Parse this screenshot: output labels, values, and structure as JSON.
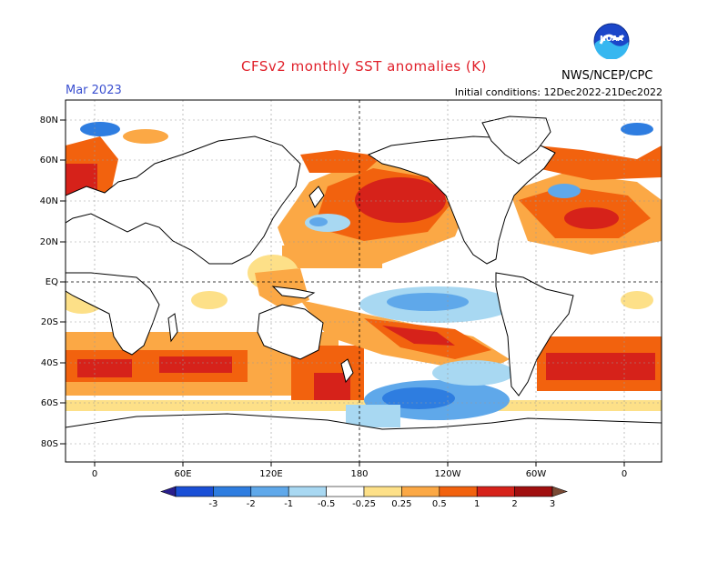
{
  "header": {
    "title": "CFSv2 monthly SST anomalies (K)",
    "month": "Mar 2023",
    "initial_conditions": "Initial conditions: 12Dec2022-21Dec2022",
    "agency": "NWS/NCEP/CPC",
    "logo_text": "NOAA"
  },
  "axes": {
    "lat_labels": [
      "80N",
      "60N",
      "40N",
      "20N",
      "EQ",
      "20S",
      "40S",
      "60S",
      "80S"
    ],
    "lon_labels": [
      "0",
      "60E",
      "120E",
      "180",
      "120W",
      "60W",
      "0"
    ]
  },
  "colorbar": {
    "tick_labels": [
      "-3",
      "-2",
      "-1",
      "-0.5",
      "-0.25",
      "0.25",
      "0.5",
      "1",
      "2",
      "3"
    ],
    "colors": [
      "#2a1e8c",
      "#1a4fd6",
      "#2e7de0",
      "#5fa8ea",
      "#a8d8f2",
      "#ffffff",
      "#fde088",
      "#fba845",
      "#f2620e",
      "#d6221a",
      "#a00f0f",
      "#7a4a35"
    ]
  },
  "colors": {
    "ocean_neutral": "#ffffff",
    "coast": "#000000",
    "grid": "#9a9a9a",
    "title": "#e0202a",
    "month": "#3a4fd0"
  }
}
